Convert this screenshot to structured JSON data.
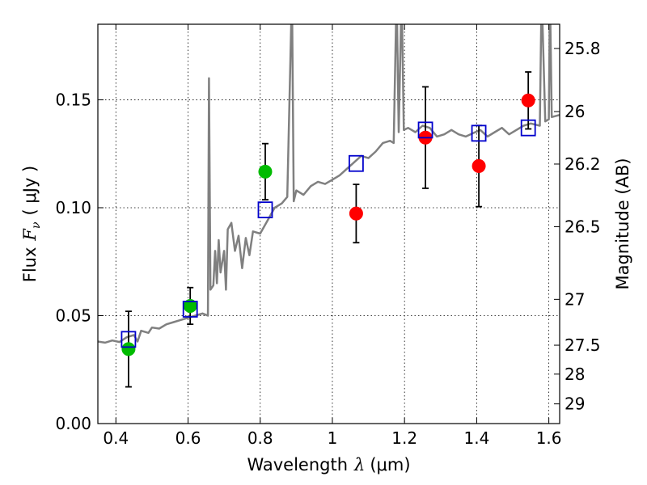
{
  "chart_data": {
    "type": "scatter",
    "xlabel_prefix": "Wavelength",
    "xlabel_symbol": "λ",
    "xlabel_unit": "(μm)",
    "ylabel_prefix": "Flux",
    "ylabel_symbol": "F",
    "ylabel_subscript": "ν",
    "ylabel_unit": "( μJy )",
    "y2label": "Magnitude (AB)",
    "xlim": [
      0.35,
      1.63
    ],
    "ylim": [
      0.0,
      0.185
    ],
    "x_ticks": [
      0.4,
      0.6,
      0.8,
      1.0,
      1.2,
      1.4,
      1.6
    ],
    "x_tick_labels": [
      "0.4",
      "0.6",
      "0.8",
      "1",
      "1.2",
      "1.4",
      "1.6"
    ],
    "y_ticks": [
      0.0,
      0.05,
      0.1,
      0.15
    ],
    "y_tick_labels": [
      "0.00",
      "0.05",
      "0.10",
      "0.15"
    ],
    "magnitude_ticks": [
      {
        "label": "25.8",
        "mag": 25.8
      },
      {
        "label": "26",
        "mag": 26.0
      },
      {
        "label": "26.2",
        "mag": 26.2
      },
      {
        "label": "26.5",
        "mag": 26.5
      },
      {
        "label": "27",
        "mag": 27.0
      },
      {
        "label": "27.5",
        "mag": 27.5
      },
      {
        "label": "28",
        "mag": 28.0
      },
      {
        "label": "29",
        "mag": 29.0
      }
    ],
    "colors": {
      "model": "#808080",
      "model_photometry": "#0000cc",
      "optical_detections": "#00bb00",
      "nir_detections": "#ff0000",
      "errorbar": "#000000"
    },
    "series": [
      {
        "name": "optical_detections",
        "points": [
          {
            "x": 0.435,
            "y": 0.0345,
            "err": 0.0175
          },
          {
            "x": 0.606,
            "y": 0.0545,
            "err": 0.0085
          },
          {
            "x": 0.814,
            "y": 0.1167,
            "err": 0.013
          }
        ]
      },
      {
        "name": "nir_detections",
        "points": [
          {
            "x": 1.066,
            "y": 0.0973,
            "err": 0.0135
          },
          {
            "x": 1.258,
            "y": 0.1325,
            "err": 0.0235
          },
          {
            "x": 1.406,
            "y": 0.1193,
            "err": 0.0188
          },
          {
            "x": 1.543,
            "y": 0.1497,
            "err": 0.0132
          }
        ]
      },
      {
        "name": "model_photometry",
        "points": [
          {
            "x": 0.435,
            "y": 0.039
          },
          {
            "x": 0.606,
            "y": 0.053
          },
          {
            "x": 0.814,
            "y": 0.099
          },
          {
            "x": 1.066,
            "y": 0.1205
          },
          {
            "x": 1.258,
            "y": 0.136
          },
          {
            "x": 1.406,
            "y": 0.1345
          },
          {
            "x": 1.543,
            "y": 0.137
          }
        ]
      }
    ],
    "model_spectrum": [
      [
        0.35,
        0.038
      ],
      [
        0.37,
        0.0375
      ],
      [
        0.39,
        0.0385
      ],
      [
        0.41,
        0.0378
      ],
      [
        0.43,
        0.04
      ],
      [
        0.45,
        0.041
      ],
      [
        0.46,
        0.038
      ],
      [
        0.47,
        0.043
      ],
      [
        0.49,
        0.042
      ],
      [
        0.5,
        0.0445
      ],
      [
        0.52,
        0.044
      ],
      [
        0.54,
        0.046
      ],
      [
        0.56,
        0.047
      ],
      [
        0.58,
        0.048
      ],
      [
        0.6,
        0.049
      ],
      [
        0.62,
        0.05
      ],
      [
        0.64,
        0.051
      ],
      [
        0.655,
        0.05
      ],
      [
        0.658,
        0.16
      ],
      [
        0.662,
        0.062
      ],
      [
        0.67,
        0.064
      ],
      [
        0.675,
        0.08
      ],
      [
        0.68,
        0.065
      ],
      [
        0.685,
        0.085
      ],
      [
        0.69,
        0.07
      ],
      [
        0.7,
        0.08
      ],
      [
        0.705,
        0.062
      ],
      [
        0.71,
        0.09
      ],
      [
        0.72,
        0.093
      ],
      [
        0.73,
        0.08
      ],
      [
        0.74,
        0.087
      ],
      [
        0.75,
        0.072
      ],
      [
        0.76,
        0.086
      ],
      [
        0.77,
        0.078
      ],
      [
        0.78,
        0.089
      ],
      [
        0.8,
        0.088
      ],
      [
        0.82,
        0.094
      ],
      [
        0.84,
        0.1
      ],
      [
        0.86,
        0.102
      ],
      [
        0.875,
        0.105
      ],
      [
        0.888,
        0.2
      ],
      [
        0.893,
        0.103
      ],
      [
        0.9,
        0.108
      ],
      [
        0.92,
        0.106
      ],
      [
        0.94,
        0.11
      ],
      [
        0.96,
        0.112
      ],
      [
        0.98,
        0.111
      ],
      [
        1.0,
        0.113
      ],
      [
        1.02,
        0.115
      ],
      [
        1.04,
        0.118
      ],
      [
        1.06,
        0.121
      ],
      [
        1.08,
        0.124
      ],
      [
        1.1,
        0.123
      ],
      [
        1.12,
        0.126
      ],
      [
        1.14,
        0.13
      ],
      [
        1.16,
        0.131
      ],
      [
        1.17,
        0.13
      ],
      [
        1.178,
        0.2
      ],
      [
        1.184,
        0.135
      ],
      [
        1.192,
        0.2
      ],
      [
        1.198,
        0.136
      ],
      [
        1.21,
        0.137
      ],
      [
        1.23,
        0.135
      ],
      [
        1.25,
        0.138
      ],
      [
        1.27,
        0.137
      ],
      [
        1.29,
        0.133
      ],
      [
        1.31,
        0.134
      ],
      [
        1.33,
        0.136
      ],
      [
        1.35,
        0.134
      ],
      [
        1.37,
        0.133
      ],
      [
        1.39,
        0.1345
      ],
      [
        1.41,
        0.136
      ],
      [
        1.43,
        0.133
      ],
      [
        1.45,
        0.135
      ],
      [
        1.47,
        0.137
      ],
      [
        1.49,
        0.134
      ],
      [
        1.51,
        0.136
      ],
      [
        1.53,
        0.138
      ],
      [
        1.55,
        0.139
      ],
      [
        1.575,
        0.138
      ],
      [
        1.58,
        0.2
      ],
      [
        1.59,
        0.14
      ],
      [
        1.6,
        0.141
      ],
      [
        1.603,
        0.2
      ],
      [
        1.608,
        0.142
      ],
      [
        1.63,
        0.143
      ]
    ]
  }
}
